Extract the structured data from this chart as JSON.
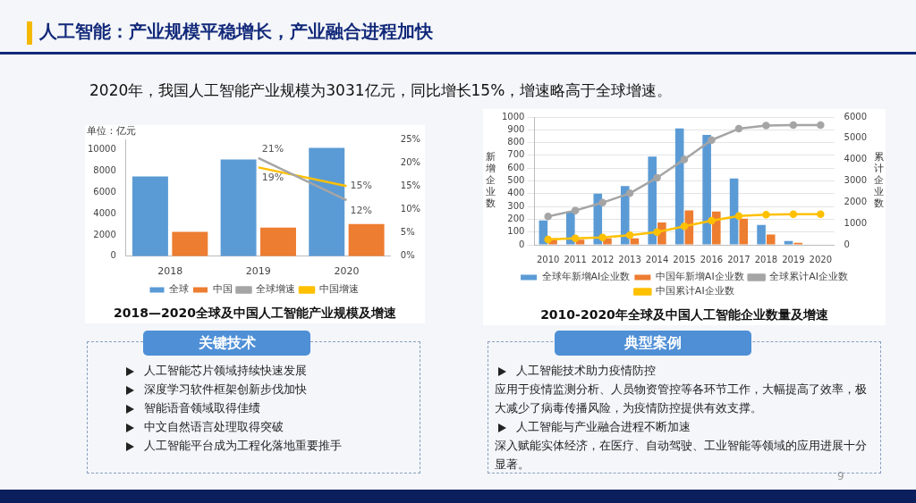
{
  "chart_data": [
    {
      "type": "other",
      "title": "人工智能：产业规模平稳增长，产业融合进程加快",
      "subtitle": "2020年，我国人工智能产业规模为3031亿元，同比增长15%，增速略高于全球增速。",
      "annotations": [
        "9"
      ]
    },
    {
      "type": "bar",
      "title": "2018—2020全球及中国人工智能产业规模及增速",
      "ylabel": "单位：亿元",
      "categories": [
        "2018",
        "2019",
        "2020"
      ],
      "series": [
        {
          "name": "全球",
          "color": "#5b9bd5",
          "values": [
            7500,
            9100,
            10200
          ]
        },
        {
          "name": "中国",
          "color": "#ed7d31",
          "values": [
            2300,
            2700,
            3031
          ]
        },
        {
          "name": "全球增速",
          "type": "line",
          "axis": "y2",
          "color": "#a5a5a5",
          "values": [
            null,
            21,
            12
          ],
          "value_labels": [
            null,
            "21%",
            "12%"
          ]
        },
        {
          "name": "中国增速",
          "type": "line",
          "axis": "y2",
          "color": "#ffc000",
          "values": [
            null,
            19,
            15
          ],
          "value_labels": [
            null,
            "19%",
            "15%"
          ]
        }
      ],
      "ylim": [
        0,
        11000
      ],
      "yticks": [
        0,
        2000,
        4000,
        6000,
        8000,
        10000
      ],
      "y2lim": [
        0,
        25
      ],
      "y2ticks": [
        {
          "value": 0,
          "label": "0%"
        },
        {
          "value": 5,
          "label": "5%"
        },
        {
          "value": 10,
          "label": "10%"
        },
        {
          "value": 15,
          "label": "15%"
        },
        {
          "value": 20,
          "label": "20%"
        },
        {
          "value": 25,
          "label": "25%"
        }
      ],
      "legend": "bottom",
      "grid": false
    },
    {
      "type": "bar",
      "title": "2010-2020年全球及中国人工智能企业数量及增速",
      "ylabel": "新增企业数",
      "y2label": "累计企业数",
      "categories": [
        "2010",
        "2011",
        "2012",
        "2013",
        "2014",
        "2015",
        "2016",
        "2017",
        "2018",
        "2019",
        "2020"
      ],
      "series": [
        {
          "name": "全球年新增AI企业数",
          "color": "#5b9bd5",
          "values": [
            190,
            260,
            400,
            460,
            690,
            910,
            860,
            520,
            155,
            30,
            null
          ]
        },
        {
          "name": "中国年新增AI企业数",
          "color": "#ed7d31",
          "values": [
            50,
            40,
            50,
            50,
            175,
            270,
            260,
            205,
            80,
            15,
            null
          ]
        },
        {
          "name": "全球累计AI企业数",
          "type": "line",
          "axis": "y2",
          "color": "#a5a5a5",
          "values": [
            1330,
            1610,
            1980,
            2420,
            3150,
            4010,
            4920,
            5450,
            5600,
            5620,
            5620
          ]
        },
        {
          "name": "中国累计AI企业数",
          "type": "line",
          "axis": "y2",
          "color": "#ffc000",
          "values": [
            250,
            300,
            350,
            450,
            600,
            870,
            1130,
            1350,
            1420,
            1440,
            1440
          ]
        }
      ],
      "ylim": [
        0,
        1000
      ],
      "yticks": [
        0,
        100,
        200,
        300,
        400,
        500,
        600,
        700,
        800,
        900,
        1000
      ],
      "y2lim": [
        0,
        6000
      ],
      "y2ticks": [
        0,
        1000,
        2000,
        3000,
        4000,
        5000,
        6000
      ],
      "legend": "bottom",
      "grid": "y",
      "marker": "circle"
    },
    {
      "type": "other",
      "title": "关键技术",
      "annotations": [
        "人工智能芯片领域持续快速发展",
        "深度学习软件框架创新步伐加快",
        "智能语音领域取得佳绩",
        "中文自然语言处理取得突破",
        "人工智能平台成为工程化落地重要推手"
      ]
    },
    {
      "type": "other",
      "title": "典型案例",
      "annotations": [
        "人工智能技术助力疫情防控",
        "应用于疫情监测分析、人员物资管控等各环节工作，大幅提高了效率，极大减少了病毒传播风险，为疫情防控提供有效支撑。",
        "人工智能与产业融合进程不断加速",
        "深入赋能实体经济，在医疗、自动驾驶、工业智能等领域的应用进展十分显著。"
      ]
    }
  ]
}
